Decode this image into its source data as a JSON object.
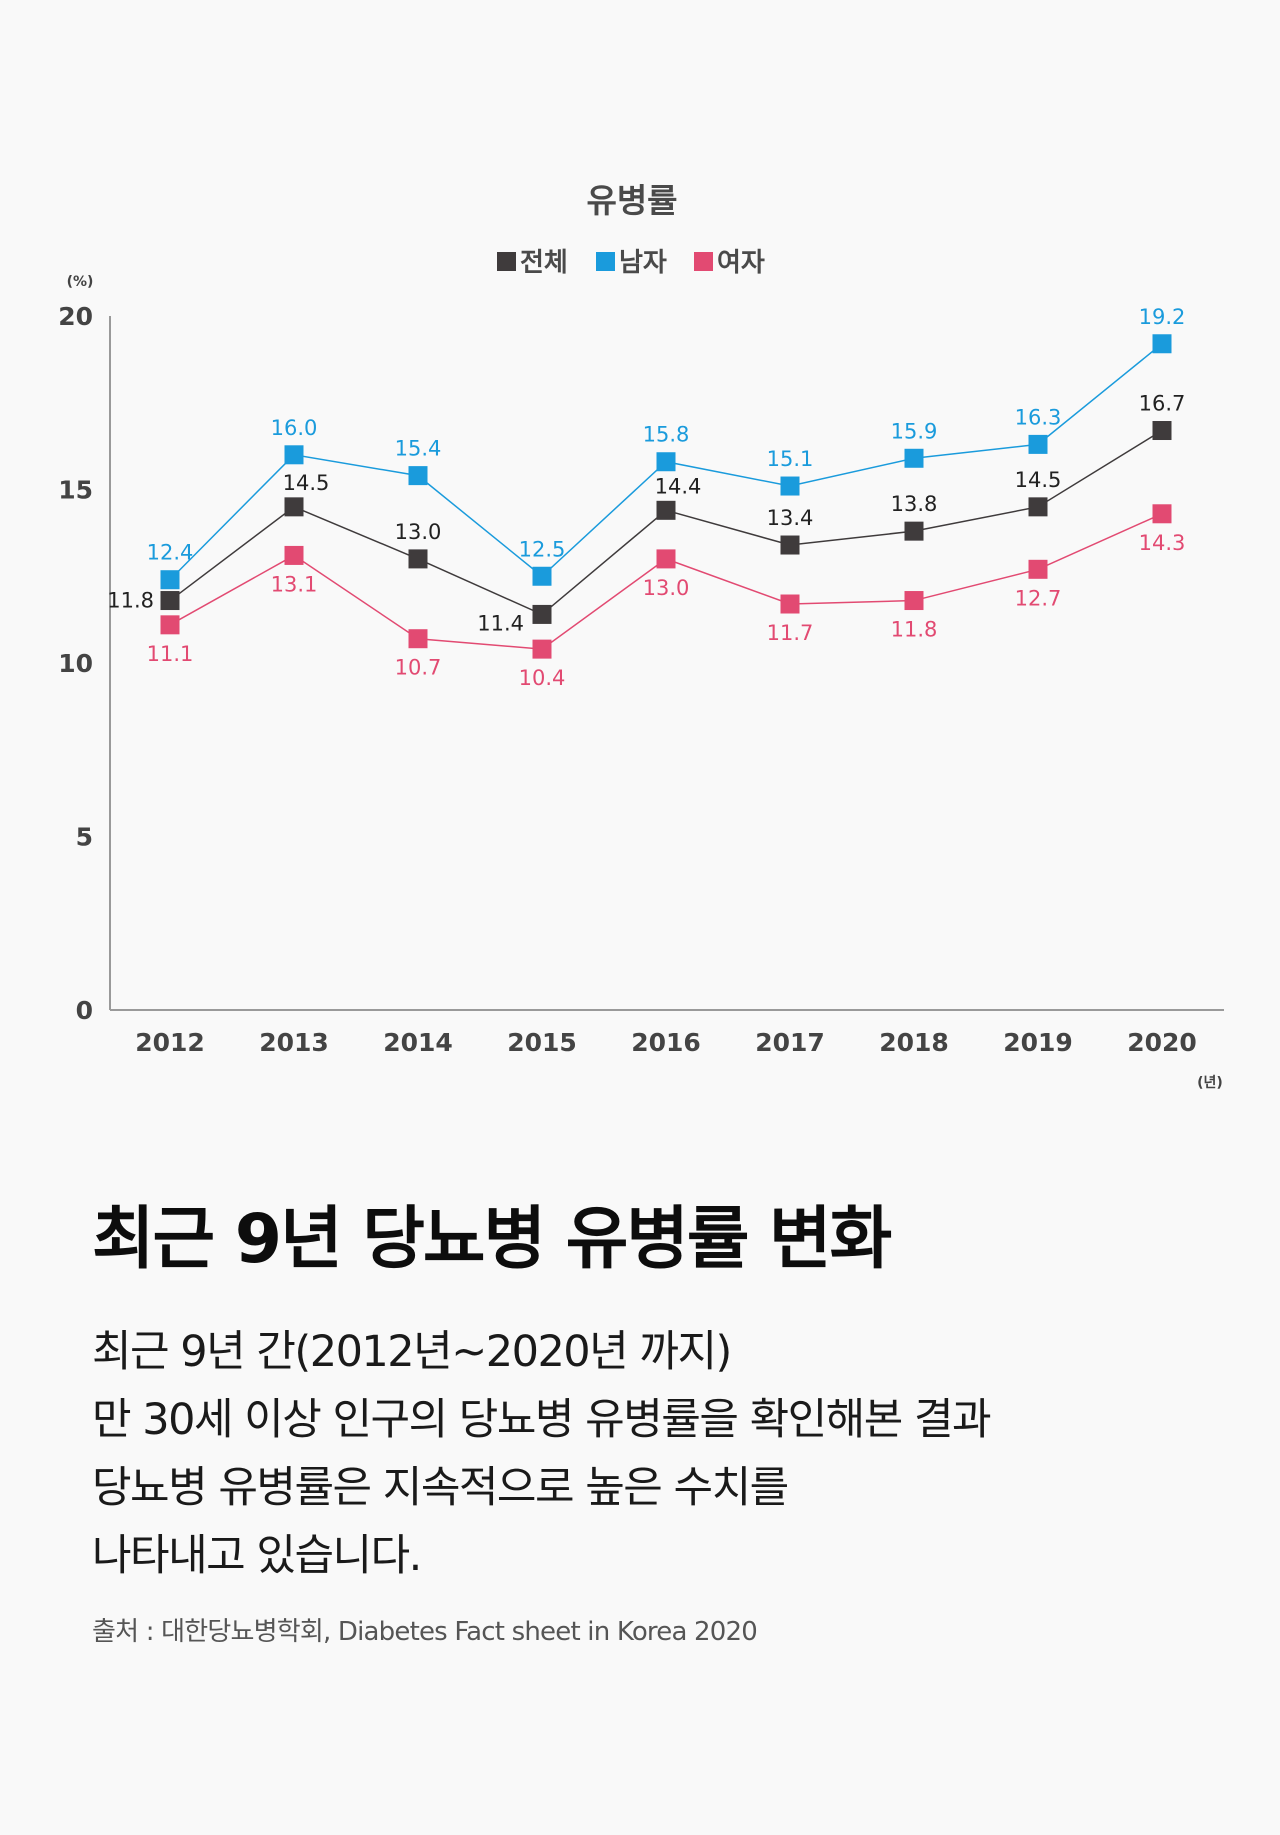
{
  "chart_data": {
    "type": "line",
    "title": "유병률",
    "categories": [
      "2012",
      "2013",
      "2014",
      "2015",
      "2016",
      "2017",
      "2018",
      "2019",
      "2020"
    ],
    "series": [
      {
        "name": "전체",
        "color": "#3f3b3c",
        "label_color": "#222222",
        "values": [
          11.8,
          14.5,
          13.0,
          11.4,
          14.4,
          13.4,
          13.8,
          14.5,
          16.7
        ]
      },
      {
        "name": "남자",
        "color": "#1a9bdc",
        "label_color": "#1a9bdc",
        "values": [
          12.4,
          16.0,
          15.4,
          12.5,
          15.8,
          15.1,
          15.9,
          16.3,
          19.2
        ]
      },
      {
        "name": "여자",
        "color": "#e24a72",
        "label_color": "#e24a72",
        "values": [
          11.1,
          13.1,
          10.7,
          10.4,
          13.0,
          11.7,
          11.8,
          12.7,
          14.3
        ]
      }
    ],
    "ylim": [
      0,
      20
    ],
    "yticks": [
      0,
      5,
      10,
      15,
      20
    ],
    "ylabel": "(%)",
    "xlabel": "(년)",
    "legend_position": "top-center",
    "grid": false,
    "data_labels": true,
    "marker": "square"
  },
  "text": {
    "headline": "최근 9년 당뇨병 유병률 변화",
    "description_lines": [
      "최근 9년 간(2012년~2020년 까지)",
      "만 30세 이상 인구의 당뇨병 유병률을 확인해본 결과",
      "당뇨병 유병률은 지속적으로 높은 수치를",
      "나타내고 있습니다."
    ],
    "source": "출처 : 대한당뇨병학회, Diabetes Fact sheet in Korea 2020"
  }
}
